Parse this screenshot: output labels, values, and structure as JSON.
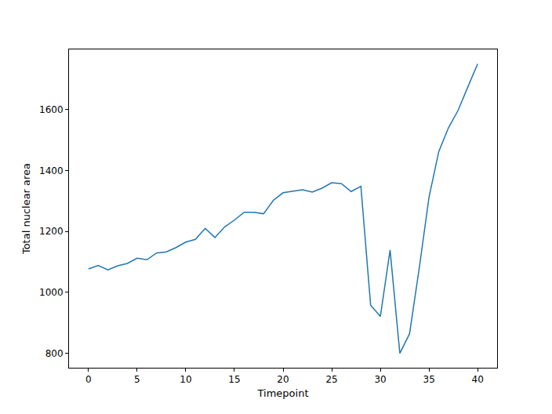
{
  "chart_data": {
    "type": "line",
    "x_label": "Timepoint",
    "y_label": "Total nuclear area",
    "x": [
      0,
      1,
      2,
      3,
      4,
      5,
      6,
      7,
      8,
      9,
      10,
      11,
      12,
      13,
      14,
      15,
      16,
      17,
      18,
      19,
      20,
      21,
      22,
      23,
      24,
      25,
      26,
      27,
      28,
      29,
      30,
      31,
      32,
      33,
      34,
      35,
      36,
      37,
      38,
      39,
      40
    ],
    "values": [
      1077,
      1088,
      1074,
      1087,
      1095,
      1112,
      1107,
      1129,
      1133,
      1147,
      1165,
      1174,
      1210,
      1180,
      1215,
      1237,
      1263,
      1263,
      1258,
      1302,
      1327,
      1332,
      1337,
      1329,
      1342,
      1360,
      1357,
      1331,
      1348,
      958,
      921,
      1139,
      800,
      864,
      1080,
      1312,
      1462,
      1540,
      1598,
      1675,
      1750
    ],
    "color": "#1f77b4",
    "xlim": [
      -2,
      42
    ],
    "xticks": [
      0,
      5,
      10,
      15,
      20,
      25,
      30,
      35,
      40
    ],
    "ylim": [
      752.5,
      1797.5
    ],
    "yticks": [
      800,
      1000,
      1200,
      1400,
      1600
    ],
    "grid": false
  }
}
